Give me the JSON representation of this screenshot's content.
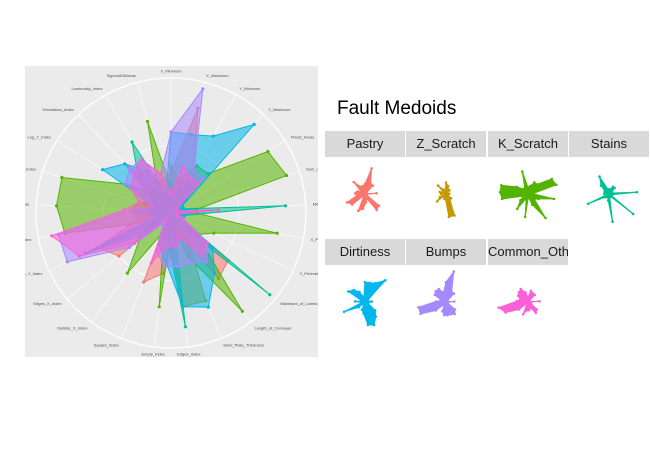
{
  "chart_data": [
    {
      "type": "radar",
      "title": "",
      "grid": true,
      "background": "#ebebeb",
      "axes": [
        "X_Minimum",
        "X_Maximum",
        "Y_Minimum",
        "Y_Maximum",
        "Pixels_Areas",
        "Sum_of_Luminosity",
        "Minimum_of_Luminosity",
        "X_Perimeter",
        "Y_Perimeter",
        "Maximum_of_Luminosity",
        "Length_of_Conveyer",
        "Steel_Plate_Thickness",
        "Edges_Index",
        "Empty_Index",
        "Square_Index",
        "Outside_X_Index",
        "Edges_X_Index",
        "Edges_Y_Index",
        "Outside_Global_Index",
        "LogOfAreas",
        "Log_X_Index",
        "Log_Y_Index",
        "Orientation_Index",
        "Luminosity_Index",
        "SigmoidOfAreas"
      ],
      "axis_labels_display": [
        "X_Minimum",
        "X_Maximum",
        "Y_Minimum",
        "Y_Maximum",
        "Pixels_Areas",
        "Sum_of_Luminosity",
        "Minimum_of_Lumino",
        "X_Perimeter",
        "Y_Perimeter",
        "Maximum_of_Luminosity",
        "Length_of_Conveyer",
        "Steel_Plate_Thickness",
        "Edges_Index",
        "Empty_Index",
        "Square_Index",
        "Outside_X_Index",
        "Edges_X_Index",
        "Edges_Y_Index",
        "Outside_Global_Index",
        "LogOfAreas",
        "Log_X_Index",
        "Log_Y_Index",
        "Orientation_Index",
        "Luminosity_Index",
        "SigmoidOfAreas"
      ],
      "rlim": [
        0,
        1
      ],
      "series": [
        {
          "name": "Pastry",
          "color": "#F8766D",
          "values": [
            0.3,
            0.8,
            0.35,
            0.35,
            0.05,
            0.05,
            0.35,
            0.05,
            0.05,
            0.55,
            0.6,
            0.15,
            0.25,
            0.45,
            0.55,
            0.05,
            0.5,
            0.6,
            0.25,
            0.3,
            0.25,
            0.15,
            0.5,
            0.25,
            0.25
          ]
        },
        {
          "name": "Z_Scratch",
          "color": "#C49A00",
          "values": [
            0.35,
            0.25,
            0.15,
            0.15,
            0.05,
            0.05,
            0.1,
            0.05,
            0.05,
            0.2,
            0.2,
            0.7,
            0.7,
            0.15,
            0.15,
            0.05,
            0.35,
            0.2,
            0.05,
            0.15,
            0.2,
            0.1,
            0.35,
            0.15,
            0.1
          ]
        },
        {
          "name": "K_Scratch",
          "color": "#53B400",
          "values": [
            0.2,
            0.25,
            0.4,
            0.4,
            0.85,
            0.9,
            0.15,
            0.8,
            0.35,
            0.25,
            0.9,
            0.35,
            0.1,
            0.7,
            0.15,
            0.55,
            0.3,
            0.15,
            0.8,
            0.85,
            0.85,
            0.4,
            0.2,
            0.2,
            0.7
          ]
        },
        {
          "name": "Stains",
          "color": "#00C094",
          "values": [
            0.1,
            0.15,
            0.25,
            0.25,
            0.1,
            0.1,
            0.85,
            0.1,
            0.05,
            0.95,
            0.1,
            0.05,
            0.85,
            0.2,
            0.1,
            0.05,
            0.15,
            0.7,
            0.05,
            0.15,
            0.1,
            0.15,
            0.35,
            0.6,
            0.15
          ]
        },
        {
          "name": "Dirtiness",
          "color": "#00B6EB",
          "values": [
            0.6,
            0.6,
            0.65,
            0.9,
            0.1,
            0.1,
            0.2,
            0.1,
            0.1,
            0.4,
            0.55,
            0.75,
            0.7,
            0.35,
            0.25,
            0.05,
            0.25,
            0.7,
            0.1,
            0.3,
            0.1,
            0.6,
            0.5,
            0.35,
            0.15
          ]
        },
        {
          "name": "Bumps",
          "color": "#A58AFF",
          "values": [
            0.6,
            0.95,
            0.35,
            0.35,
            0.05,
            0.05,
            0.25,
            0.05,
            0.05,
            0.35,
            0.45,
            0.4,
            0.4,
            0.4,
            0.3,
            0.1,
            0.4,
            0.85,
            0.85,
            0.3,
            0.15,
            0.4,
            0.45,
            0.45,
            0.3
          ]
        },
        {
          "name": "Other_Faults",
          "color": "#FB61D7",
          "values": [
            0.15,
            0.35,
            0.3,
            0.3,
            0.05,
            0.05,
            0.35,
            0.05,
            0.1,
            0.35,
            0.4,
            0.2,
            0.25,
            0.25,
            0.4,
            0.05,
            0.35,
            0.75,
            0.9,
            0.35,
            0.25,
            0.35,
            0.4,
            0.45,
            0.3
          ]
        }
      ]
    },
    {
      "type": "radar",
      "title": "Fault Medoids",
      "facet_labels": [
        "Pastry",
        "Z_Scratch",
        "K_Scratch",
        "Stains",
        "Dirtiness",
        "Bumps",
        "Common_Other_Faults"
      ],
      "note": "small multiples, one per series of the first chart"
    }
  ]
}
